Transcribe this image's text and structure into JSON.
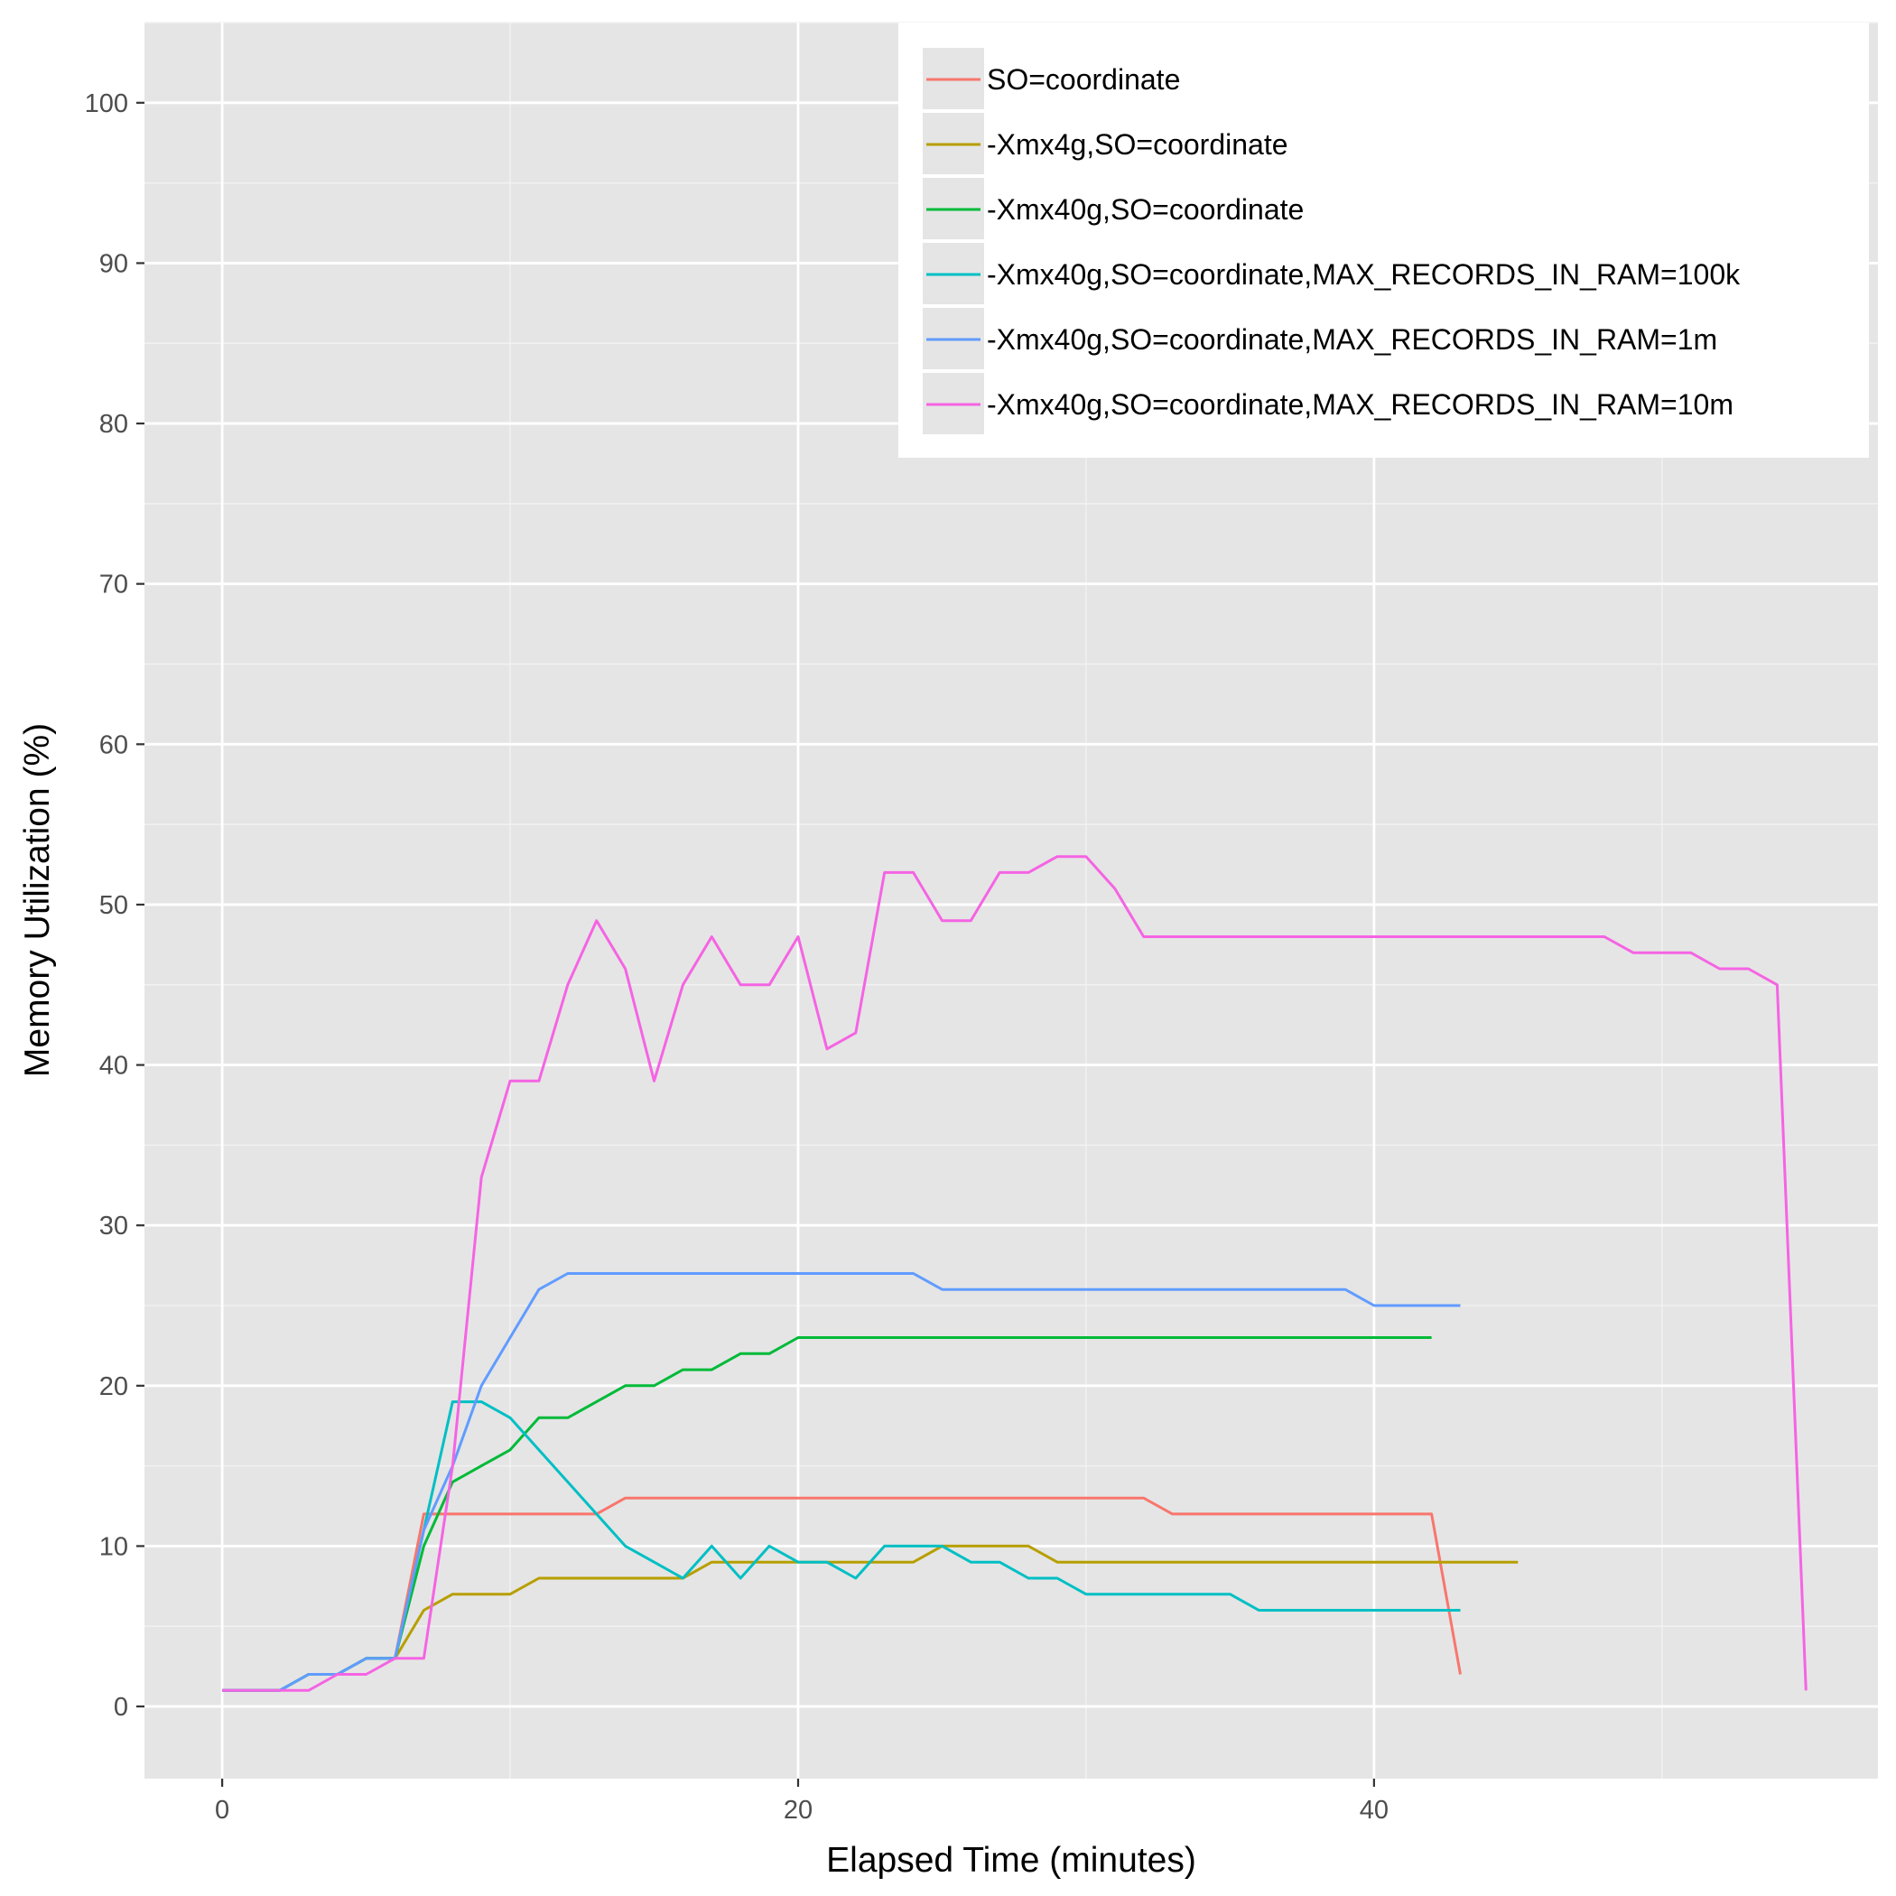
{
  "chart_data": {
    "type": "line",
    "title": "",
    "xlabel": "Elapsed Time (minutes)",
    "ylabel": "Memory Utilization (%)",
    "xlim": [
      -2.7,
      57.5
    ],
    "ylim": [
      -4.5,
      105
    ],
    "x_ticks": [
      0,
      20,
      40
    ],
    "x_tick_labels": [
      "0",
      "20",
      "40"
    ],
    "y_ticks": [
      0,
      10,
      20,
      30,
      40,
      50,
      60,
      70,
      80,
      90,
      100
    ],
    "y_tick_labels": [
      "0",
      "10",
      "20",
      "30",
      "40",
      "50",
      "60",
      "70",
      "80",
      "90",
      "100"
    ],
    "grid": true,
    "legend_position": "top-right",
    "background_color": "#e5e5e5",
    "series": [
      {
        "name": "SO=coordinate",
        "color": "#F8766D",
        "x": [
          0,
          1,
          2,
          3,
          4,
          5,
          6,
          7,
          8,
          9,
          10,
          11,
          12,
          13,
          14,
          15,
          16,
          17,
          18,
          19,
          20,
          21,
          22,
          23,
          24,
          25,
          26,
          27,
          28,
          29,
          30,
          31,
          32,
          33,
          34,
          35,
          36,
          37,
          38,
          39,
          40,
          41,
          42,
          43
        ],
        "y": [
          1,
          1,
          1,
          2,
          2,
          3,
          3,
          12,
          12,
          12,
          12,
          12,
          12,
          12,
          13,
          13,
          13,
          13,
          13,
          13,
          13,
          13,
          13,
          13,
          13,
          13,
          13,
          13,
          13,
          13,
          13,
          13,
          13,
          12,
          12,
          12,
          12,
          12,
          12,
          12,
          12,
          12,
          12,
          2
        ]
      },
      {
        "name": "-Xmx4g,SO=coordinate",
        "color": "#B79F00",
        "x": [
          0,
          1,
          2,
          3,
          4,
          5,
          6,
          7,
          8,
          9,
          10,
          11,
          12,
          13,
          14,
          15,
          16,
          17,
          18,
          19,
          20,
          21,
          22,
          23,
          24,
          25,
          26,
          27,
          28,
          29,
          30,
          31,
          32,
          33,
          34,
          35,
          36,
          37,
          38,
          39,
          40,
          41,
          42,
          43,
          44,
          45
        ],
        "y": [
          1,
          1,
          1,
          2,
          2,
          3,
          3,
          6,
          7,
          7,
          7,
          8,
          8,
          8,
          8,
          8,
          8,
          9,
          9,
          9,
          9,
          9,
          9,
          9,
          9,
          10,
          10,
          10,
          10,
          9,
          9,
          9,
          9,
          9,
          9,
          9,
          9,
          9,
          9,
          9,
          9,
          9,
          9,
          9,
          9,
          9
        ]
      },
      {
        "name": "-Xmx40g,SO=coordinate",
        "color": "#00BA38",
        "x": [
          0,
          1,
          2,
          3,
          4,
          5,
          6,
          7,
          8,
          9,
          10,
          11,
          12,
          13,
          14,
          15,
          16,
          17,
          18,
          19,
          20,
          21,
          22,
          23,
          24,
          25,
          26,
          27,
          28,
          29,
          30,
          31,
          32,
          33,
          34,
          35,
          36,
          37,
          38,
          39,
          40,
          41,
          42
        ],
        "y": [
          1,
          1,
          1,
          2,
          2,
          3,
          3,
          10,
          14,
          15,
          16,
          18,
          18,
          19,
          20,
          20,
          21,
          21,
          22,
          22,
          23,
          23,
          23,
          23,
          23,
          23,
          23,
          23,
          23,
          23,
          23,
          23,
          23,
          23,
          23,
          23,
          23,
          23,
          23,
          23,
          23,
          23,
          23
        ]
      },
      {
        "name": "-Xmx40g,SO=coordinate,MAX_RECORDS_IN_RAM=100k",
        "color": "#00BFC4",
        "x": [
          0,
          1,
          2,
          3,
          4,
          5,
          6,
          7,
          8,
          9,
          10,
          11,
          12,
          13,
          14,
          15,
          16,
          17,
          18,
          19,
          20,
          21,
          22,
          23,
          24,
          25,
          26,
          27,
          28,
          29,
          30,
          31,
          32,
          33,
          34,
          35,
          36,
          37,
          38,
          39,
          40,
          41,
          42,
          43
        ],
        "y": [
          1,
          1,
          1,
          2,
          2,
          3,
          3,
          11,
          19,
          19,
          18,
          16,
          14,
          12,
          10,
          9,
          8,
          10,
          8,
          10,
          9,
          9,
          8,
          10,
          10,
          10,
          9,
          9,
          8,
          8,
          7,
          7,
          7,
          7,
          7,
          7,
          6,
          6,
          6,
          6,
          6,
          6,
          6,
          6
        ]
      },
      {
        "name": "-Xmx40g,SO=coordinate,MAX_RECORDS_IN_RAM=1m",
        "color": "#619CFF",
        "x": [
          0,
          1,
          2,
          3,
          4,
          5,
          6,
          7,
          8,
          9,
          10,
          11,
          12,
          13,
          14,
          15,
          16,
          17,
          18,
          19,
          20,
          21,
          22,
          23,
          24,
          25,
          26,
          27,
          28,
          29,
          30,
          31,
          32,
          33,
          34,
          35,
          36,
          37,
          38,
          39,
          40,
          41,
          42,
          43
        ],
        "y": [
          1,
          1,
          1,
          2,
          2,
          3,
          3,
          11,
          15,
          20,
          23,
          26,
          27,
          27,
          27,
          27,
          27,
          27,
          27,
          27,
          27,
          27,
          27,
          27,
          27,
          26,
          26,
          26,
          26,
          26,
          26,
          26,
          26,
          26,
          26,
          26,
          26,
          26,
          26,
          26,
          25,
          25,
          25,
          25
        ]
      },
      {
        "name": "-Xmx40g,SO=coordinate,MAX_RECORDS_IN_RAM=10m",
        "color": "#F564E3",
        "x": [
          0,
          1,
          2,
          3,
          4,
          5,
          6,
          7,
          8,
          9,
          10,
          11,
          12,
          13,
          14,
          15,
          16,
          17,
          18,
          19,
          20,
          21,
          22,
          23,
          24,
          25,
          26,
          27,
          28,
          29,
          30,
          31,
          32,
          33,
          34,
          35,
          36,
          37,
          38,
          39,
          40,
          41,
          42,
          43,
          44,
          45,
          46,
          47,
          48,
          49,
          50,
          51,
          52,
          53,
          54,
          55
        ],
        "y": [
          1,
          1,
          1,
          1,
          2,
          2,
          3,
          3,
          15,
          33,
          39,
          39,
          45,
          49,
          46,
          39,
          45,
          48,
          45,
          45,
          48,
          41,
          42,
          52,
          52,
          49,
          49,
          52,
          52,
          53,
          53,
          51,
          48,
          48,
          48,
          48,
          48,
          48,
          48,
          48,
          48,
          48,
          48,
          48,
          48,
          48,
          48,
          48,
          48,
          47,
          47,
          47,
          46,
          46,
          45,
          1
        ]
      }
    ]
  }
}
